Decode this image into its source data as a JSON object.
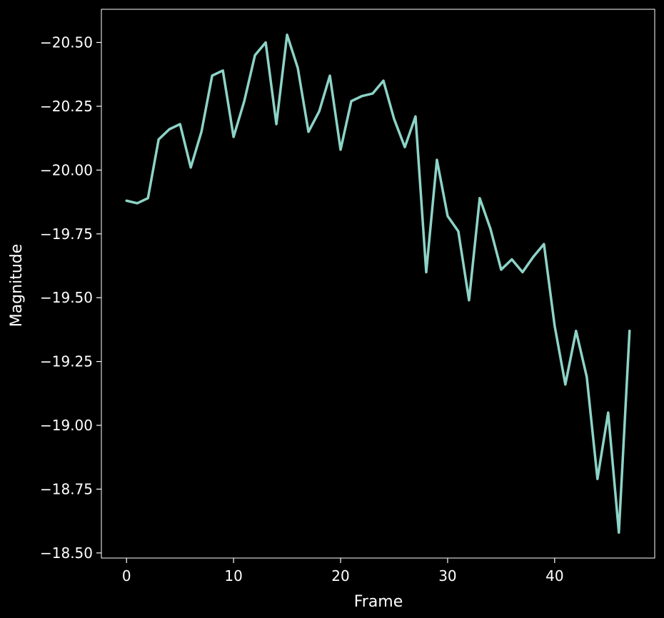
{
  "chart_data": {
    "type": "line",
    "xlabel": "Frame",
    "ylabel": "Magnitude",
    "xlim": [
      -2.35,
      49.35
    ],
    "ylim": [
      -18.48,
      -20.63
    ],
    "y_inverted": true,
    "grid": false,
    "x_ticks": [
      0,
      10,
      20,
      30,
      40
    ],
    "x_tick_labels": [
      "0",
      "10",
      "20",
      "30",
      "40"
    ],
    "y_ticks": [
      -20.5,
      -20.25,
      -20.0,
      -19.75,
      -19.5,
      -19.25,
      -19.0,
      -18.75,
      -18.5
    ],
    "y_tick_labels": [
      "−20.50",
      "−20.25",
      "−20.00",
      "−19.75",
      "−19.50",
      "−19.25",
      "−19.00",
      "−18.75",
      "−18.50"
    ],
    "series": [
      {
        "color": "#8dd3c7",
        "x": [
          0,
          1,
          2,
          3,
          4,
          5,
          6,
          7,
          8,
          9,
          10,
          11,
          12,
          13,
          14,
          15,
          16,
          17,
          18,
          19,
          20,
          21,
          22,
          23,
          24,
          25,
          26,
          27,
          28,
          29,
          30,
          31,
          32,
          33,
          34,
          35,
          36,
          37,
          38,
          39,
          40,
          41,
          42,
          43,
          44,
          45,
          46,
          47
        ],
        "y": [
          -19.88,
          -19.87,
          -19.89,
          -20.12,
          -20.16,
          -20.18,
          -20.01,
          -20.15,
          -20.37,
          -20.39,
          -20.13,
          -20.27,
          -20.45,
          -20.5,
          -20.18,
          -20.53,
          -20.4,
          -20.15,
          -20.23,
          -20.37,
          -20.08,
          -20.27,
          -20.29,
          -20.3,
          -20.35,
          -20.2,
          -20.09,
          -20.21,
          -19.6,
          -20.04,
          -19.82,
          -19.76,
          -19.49,
          -19.89,
          -19.77,
          -19.61,
          -19.65,
          -19.6,
          -19.66,
          -19.71,
          -19.39,
          -19.16,
          -19.37,
          -19.19,
          -18.79,
          -19.05,
          -18.58,
          -19.37
        ]
      }
    ]
  }
}
